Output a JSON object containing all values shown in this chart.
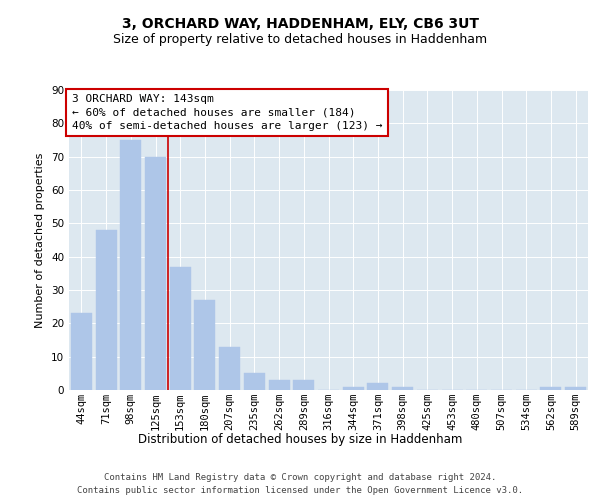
{
  "title": "3, ORCHARD WAY, HADDENHAM, ELY, CB6 3UT",
  "subtitle": "Size of property relative to detached houses in Haddenham",
  "xlabel": "Distribution of detached houses by size in Haddenham",
  "ylabel": "Number of detached properties",
  "categories": [
    "44sqm",
    "71sqm",
    "98sqm",
    "125sqm",
    "153sqm",
    "180sqm",
    "207sqm",
    "235sqm",
    "262sqm",
    "289sqm",
    "316sqm",
    "344sqm",
    "371sqm",
    "398sqm",
    "425sqm",
    "453sqm",
    "480sqm",
    "507sqm",
    "534sqm",
    "562sqm",
    "589sqm"
  ],
  "values": [
    23,
    48,
    75,
    70,
    37,
    27,
    13,
    5,
    3,
    3,
    0,
    1,
    2,
    1,
    0,
    0,
    0,
    0,
    0,
    1,
    1
  ],
  "bar_color": "#aec6e8",
  "bar_edgecolor": "#aec6e8",
  "vline_color": "#cc0000",
  "annotation_line1": "3 ORCHARD WAY: 143sqm",
  "annotation_line2": "← 60% of detached houses are smaller (184)",
  "annotation_line3": "40% of semi-detached houses are larger (123) →",
  "annotation_box_facecolor": "#ffffff",
  "annotation_box_edgecolor": "#cc0000",
  "ylim": [
    0,
    90
  ],
  "yticks": [
    0,
    10,
    20,
    30,
    40,
    50,
    60,
    70,
    80,
    90
  ],
  "fig_facecolor": "#ffffff",
  "plot_facecolor": "#dde8f0",
  "grid_color": "#ffffff",
  "footer_line1": "Contains HM Land Registry data © Crown copyright and database right 2024.",
  "footer_line2": "Contains public sector information licensed under the Open Government Licence v3.0.",
  "title_fontsize": 10,
  "subtitle_fontsize": 9,
  "xlabel_fontsize": 8.5,
  "ylabel_fontsize": 8,
  "tick_fontsize": 7.5,
  "annotation_fontsize": 8,
  "footer_fontsize": 6.5
}
